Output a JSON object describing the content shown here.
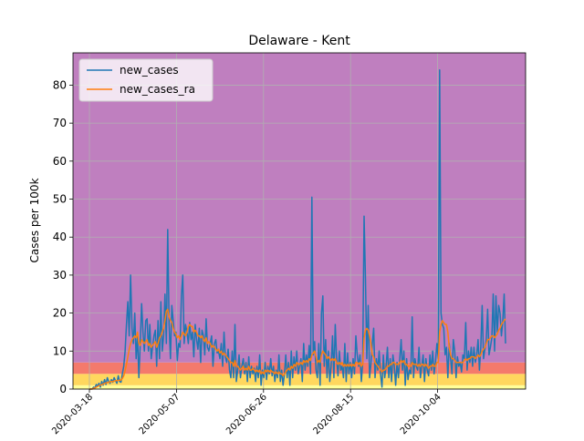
{
  "chart_data": {
    "type": "line",
    "title": "Delaware - Kent",
    "ylabel": "Cases per 100k",
    "xlabel": "",
    "x_start": "2020-03-18",
    "x_end": "2020-11-12",
    "ylim": [
      0,
      88.5
    ],
    "yticks": [
      0,
      10,
      20,
      30,
      40,
      50,
      60,
      70,
      80
    ],
    "xticks": [
      "2020-03-18",
      "2020-05-07",
      "2020-06-26",
      "2020-08-15",
      "2020-10-04"
    ],
    "grid": true,
    "legend_position": "top-left",
    "bands": [
      {
        "from": 0,
        "to": 1,
        "color": "#ffff99"
      },
      {
        "from": 1,
        "to": 4,
        "color": "#ffd75e"
      },
      {
        "from": 4,
        "to": 7,
        "color": "#f47a6c"
      },
      {
        "from": 7,
        "to": 88.5,
        "color": "#bf7fbf"
      }
    ],
    "series": [
      {
        "name": "new_cases",
        "color": "#1f77b4",
        "values": [
          0,
          0,
          0,
          0.5,
          0.3,
          1.2,
          0.8,
          1.5,
          0.5,
          2.0,
          1.0,
          2.5,
          1.2,
          3.0,
          2.0,
          1.5,
          2.5,
          1.8,
          3.0,
          2.2,
          1.5,
          3.5,
          2.0,
          1.8,
          4.0,
          6.0,
          10.0,
          17.0,
          23.0,
          14.0,
          30.0,
          16.0,
          12.0,
          20.0,
          8.0,
          14.0,
          3.0,
          12.0,
          22.5,
          15.0,
          10.0,
          18.0,
          18.5,
          10.0,
          17.0,
          8.0,
          11.0,
          14.0,
          15.5,
          6.0,
          18.0,
          8.0,
          23.0,
          10.0,
          14.0,
          25.0,
          12.0,
          42.0,
          17.0,
          8.0,
          22.0,
          18.0,
          14.0,
          15.0,
          7.5,
          12.0,
          11.0,
          24.5,
          30.0,
          12.0,
          17.0,
          15.0,
          12.0,
          17.5,
          13.0,
          15.0,
          8.5,
          17.0,
          13.0,
          10.5,
          16.0,
          7.0,
          15.5,
          14.0,
          9.0,
          18.5,
          11.0,
          10.0,
          12.0,
          14.0,
          6.0,
          12.0,
          13.0,
          9.5,
          10.0,
          8.0,
          12.0,
          6.0,
          15.0,
          8.5,
          7.0,
          10.5,
          5.0,
          3.0,
          10.0,
          3.0,
          17.0,
          2.0,
          5.0,
          9.0,
          3.0,
          6.0,
          8.0,
          4.0,
          7.0,
          2.0,
          8.5,
          3.0,
          6.0,
          4.0,
          5.5,
          2.0,
          6.0,
          3.0,
          9.0,
          1.0,
          5.0,
          3.0,
          7.0,
          2.5,
          6.0,
          4.0,
          8.0,
          3.5,
          6.0,
          2.0,
          5.0,
          3.0,
          9.0,
          2.0,
          5.0,
          1.0,
          4.0,
          9.0,
          3.0,
          7.0,
          1.0,
          10.0,
          3.0,
          8.5,
          5.0,
          10.0,
          4.0,
          6.0,
          8.0,
          2.0,
          12.0,
          5.0,
          9.0,
          6.0,
          11.5,
          4.0,
          50.5,
          9.0,
          12.5,
          5.0,
          3.0,
          12.0,
          1.0,
          20.0,
          24.5,
          6.0,
          13.0,
          3.0,
          10.0,
          2.0,
          6.0,
          14.0,
          3.0,
          17.0,
          8.0,
          3.5,
          10.0,
          5.0,
          6.0,
          3.0,
          12.0,
          2.0,
          9.5,
          4.0,
          7.0,
          3.0,
          8.0,
          4.0,
          14.0,
          9.0,
          6.0,
          9.0,
          2.0,
          7.0,
          45.5,
          29.0,
          8.0,
          22.0,
          3.0,
          6.5,
          12.0,
          16.0,
          3.0,
          8.0,
          5.0,
          10.0,
          4.0,
          0.5,
          9.0,
          3.0,
          6.0,
          11.0,
          3.0,
          8.0,
          2.0,
          9.0,
          6.0,
          1.0,
          7.0,
          3.0,
          8.0,
          13.0,
          5.0,
          10.0,
          1.0,
          8.0,
          2.5,
          5.0,
          4.0,
          19.0,
          3.0,
          8.0,
          6.0,
          5.0,
          11.0,
          3.0,
          6.0,
          9.0,
          2.0,
          8.0,
          5.0,
          3.5,
          9.0,
          5.0,
          10.0,
          4.0,
          7.0,
          12.0,
          8.0,
          84.0,
          20.0,
          17.0,
          16.0,
          9.0,
          11.0,
          3.0,
          12.0,
          8.0,
          4.0,
          13.0,
          10.0,
          3.0,
          8.5,
          6.0,
          7.0,
          4.5,
          9.0,
          8.0,
          17.5,
          5.0,
          10.0,
          7.0,
          11.0,
          6.0,
          11.0,
          7.0,
          9.0,
          13.0,
          5.0,
          11.0,
          22.0,
          8.0,
          10.5,
          13.0,
          21.0,
          9.0,
          11.0,
          13.5,
          25.0,
          10.0,
          24.5,
          15.0,
          22.0,
          20.0,
          14.0,
          18.0,
          25.0,
          12.0
        ]
      },
      {
        "name": "new_cases_ra",
        "color": "#ff7f0e",
        "values": [
          0,
          0,
          0,
          0.2,
          0.3,
          0.5,
          0.7,
          0.9,
          1.0,
          1.2,
          1.3,
          1.5,
          1.6,
          1.7,
          1.8,
          1.9,
          2.0,
          2.0,
          2.1,
          2.2,
          2.2,
          2.3,
          2.3,
          2.4,
          2.8,
          3.5,
          4.8,
          6.5,
          8.5,
          10.5,
          12.0,
          13.0,
          13.5,
          14.0,
          13.5,
          15.0,
          12.0,
          11.5,
          13.0,
          12.5,
          12.0,
          12.5,
          13.0,
          11.5,
          12.0,
          11.0,
          11.5,
          12.0,
          12.5,
          11.0,
          12.0,
          13.5,
          14.0,
          15.0,
          16.0,
          18.0,
          20.5,
          21.0,
          19.0,
          18.0,
          17.5,
          16.0,
          15.0,
          14.5,
          13.5,
          14.0,
          13.0,
          14.0,
          15.0,
          14.5,
          14.0,
          15.0,
          16.5,
          17.0,
          16.5,
          16.5,
          15.0,
          15.5,
          15.0,
          14.0,
          14.0,
          13.5,
          14.0,
          13.0,
          12.5,
          13.5,
          12.0,
          12.5,
          12.0,
          11.0,
          11.5,
          11.0,
          10.5,
          10.0,
          10.5,
          9.5,
          10.0,
          9.0,
          9.5,
          9.0,
          8.5,
          8.0,
          7.5,
          7.0,
          7.0,
          6.0,
          7.5,
          6.0,
          6.0,
          5.5,
          5.0,
          5.5,
          6.0,
          5.0,
          5.5,
          5.0,
          6.0,
          5.0,
          5.0,
          5.5,
          5.0,
          4.5,
          5.0,
          4.5,
          5.0,
          4.0,
          4.5,
          4.0,
          5.0,
          4.5,
          5.0,
          4.5,
          5.0,
          4.5,
          4.5,
          4.0,
          4.5,
          4.0,
          4.5,
          4.0,
          4.0,
          3.5,
          4.0,
          4.5,
          5.0,
          5.5,
          5.0,
          6.0,
          5.5,
          6.5,
          6.0,
          7.0,
          6.5,
          6.5,
          7.0,
          6.5,
          7.5,
          7.0,
          7.5,
          7.0,
          8.0,
          7.5,
          9.0,
          9.5,
          10.0,
          8.5,
          7.0,
          7.5,
          7.0,
          9.0,
          10.0,
          9.5,
          9.0,
          8.0,
          8.5,
          8.0,
          7.5,
          8.0,
          7.5,
          8.0,
          7.0,
          6.5,
          7.0,
          6.5,
          7.0,
          6.0,
          6.5,
          6.0,
          6.5,
          6.0,
          6.5,
          6.0,
          6.5,
          6.0,
          7.0,
          7.0,
          6.5,
          7.0,
          6.0,
          6.5,
          13.5,
          15.5,
          16.0,
          15.5,
          14.0,
          12.0,
          9.0,
          8.5,
          7.0,
          6.5,
          6.0,
          5.5,
          5.0,
          4.5,
          5.0,
          5.0,
          5.5,
          6.0,
          6.0,
          6.5,
          6.5,
          7.0,
          7.0,
          6.5,
          6.5,
          6.5,
          7.0,
          7.5,
          7.0,
          7.5,
          6.5,
          6.5,
          6.0,
          6.0,
          6.0,
          7.0,
          6.5,
          6.5,
          6.5,
          6.0,
          6.5,
          6.0,
          6.5,
          6.5,
          6.0,
          6.5,
          6.0,
          5.5,
          6.0,
          6.0,
          6.5,
          6.0,
          6.0,
          7.0,
          7.0,
          15.0,
          17.0,
          18.0,
          17.5,
          17.0,
          17.0,
          15.0,
          11.0,
          9.0,
          8.0,
          8.0,
          7.5,
          7.0,
          7.0,
          7.0,
          7.0,
          7.0,
          7.0,
          7.5,
          8.0,
          7.5,
          8.0,
          8.0,
          8.5,
          8.5,
          8.5,
          8.0,
          8.5,
          9.0,
          8.5,
          9.0,
          10.0,
          10.5,
          11.0,
          12.0,
          13.0,
          13.0,
          13.5,
          14.0,
          14.0,
          13.5,
          14.0,
          14.5,
          15.5,
          16.0,
          17.0,
          17.5,
          18.0,
          18.5
        ]
      }
    ]
  }
}
